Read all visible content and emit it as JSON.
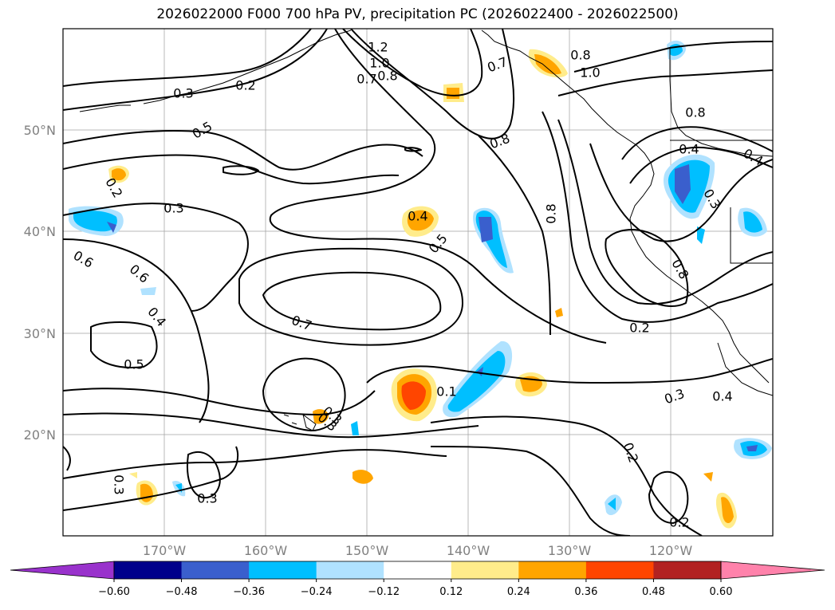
{
  "title": "2026022000 F000 700 hPa PV, precipitation PC (2026022400 - 2026022500)",
  "map": {
    "lat_labels": [
      "50°N",
      "40°N",
      "30°N",
      "20°N"
    ],
    "lon_labels": [
      "170°W",
      "160°W",
      "150°W",
      "140°W",
      "130°W",
      "120°W"
    ],
    "grid": true
  },
  "contour_labels": [
    "1.2",
    "1.0",
    "0.7",
    "0.8",
    "0.3",
    "0.2",
    "0.5",
    "0.7",
    "0.8",
    "1.0",
    "0.8",
    "0.8",
    "0.8",
    "0.4",
    "0.3",
    "0.2",
    "0.3",
    "0.6",
    "0.4",
    "0.6",
    "0.5",
    "0.4",
    "0.5",
    "0.7",
    "0.8",
    "0.2",
    "0.1",
    "0.3",
    "0.4",
    "0.3",
    "0.2",
    "0.2",
    "0.3",
    "0.3",
    "0.3",
    "0.4"
  ],
  "colorbar": {
    "ticks": [
      "−0.60",
      "−0.48",
      "−0.36",
      "−0.24",
      "−0.12",
      "0.12",
      "0.24",
      "0.36",
      "0.48",
      "0.60"
    ],
    "colors": [
      "#9932cc",
      "#00008b",
      "#3a5fcd",
      "#00bfff",
      "#b0e2ff",
      "#ffffff",
      "#ffec8b",
      "#ffa500",
      "#ff4500",
      "#b22222",
      "#ff82ab"
    ],
    "extend": "both"
  }
}
